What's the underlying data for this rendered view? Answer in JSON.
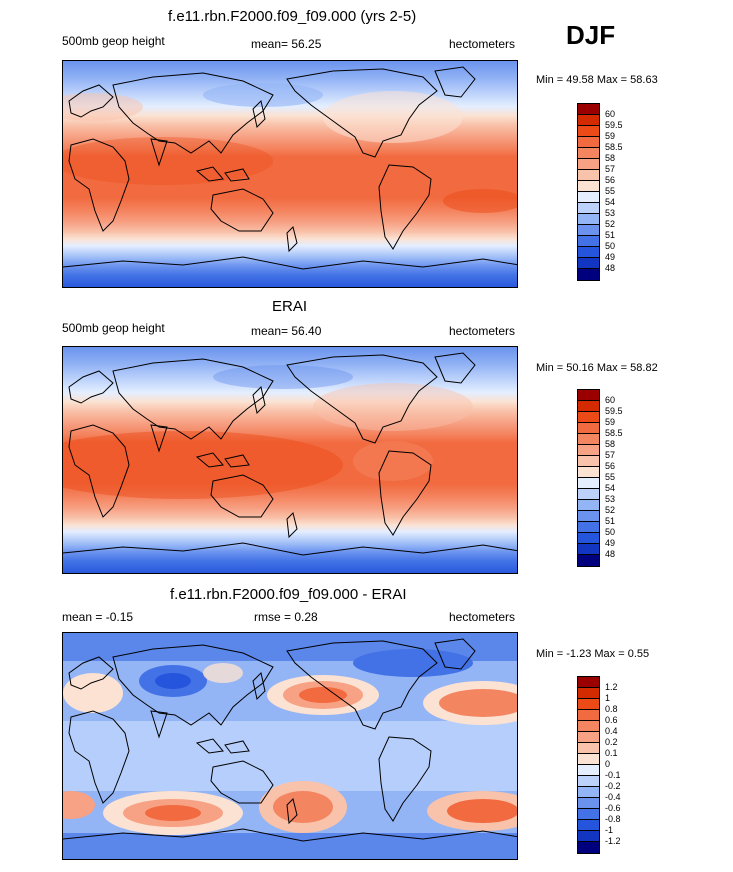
{
  "season": "DJF",
  "panels": [
    {
      "title": "f.e11.rbn.F2000.f09_f09.000 (yrs 2-5)",
      "left_label": "500mb geop height",
      "center_label": "mean=  56.25",
      "right_label": "hectometers",
      "minmax": "Min =  49.58 Max =  58.63"
    },
    {
      "title": "ERAI",
      "left_label": "500mb geop height",
      "center_label": "mean=  56.40",
      "right_label": "hectometers",
      "minmax": "Min =  50.16 Max =  58.82"
    },
    {
      "title": "f.e11.rbn.F2000.f09_f09.000 - ERAI",
      "left_label": "mean =  -0.15",
      "center_label": "rmse =   0.28",
      "right_label": "hectometers",
      "minmax": "Min =  -1.23 Max =   0.55"
    }
  ],
  "colorbars": {
    "field": {
      "labels": [
        "60",
        "59.5",
        "59",
        "58.5",
        "58",
        "57",
        "56",
        "55",
        "54",
        "53",
        "52",
        "51",
        "50",
        "49",
        "48"
      ],
      "colors": [
        "#9b0000",
        "#d42a00",
        "#ec4a17",
        "#f26a3f",
        "#f48561",
        "#f7a285",
        "#f9c2aa",
        "#fbe2d3",
        "#e4eeff",
        "#bcd2fb",
        "#93b4f5",
        "#6b93ee",
        "#4372e6",
        "#2655dd",
        "#1236c2",
        "#00007f"
      ]
    },
    "diff": {
      "labels": [
        "1.2",
        "1",
        "0.8",
        "0.6",
        "0.4",
        "0.2",
        "0.1",
        "0",
        "-0.1",
        "-0.2",
        "-0.4",
        "-0.6",
        "-0.8",
        "-1",
        "-1.2"
      ],
      "colors": [
        "#9b0000",
        "#d42a00",
        "#ec4a17",
        "#f26a3f",
        "#f48561",
        "#f7a285",
        "#f9c2aa",
        "#fbe2d3",
        "#e4eeff",
        "#bcd2fb",
        "#93b4f5",
        "#6b93ee",
        "#4372e6",
        "#2655dd",
        "#1236c2",
        "#00007f"
      ]
    }
  }
}
